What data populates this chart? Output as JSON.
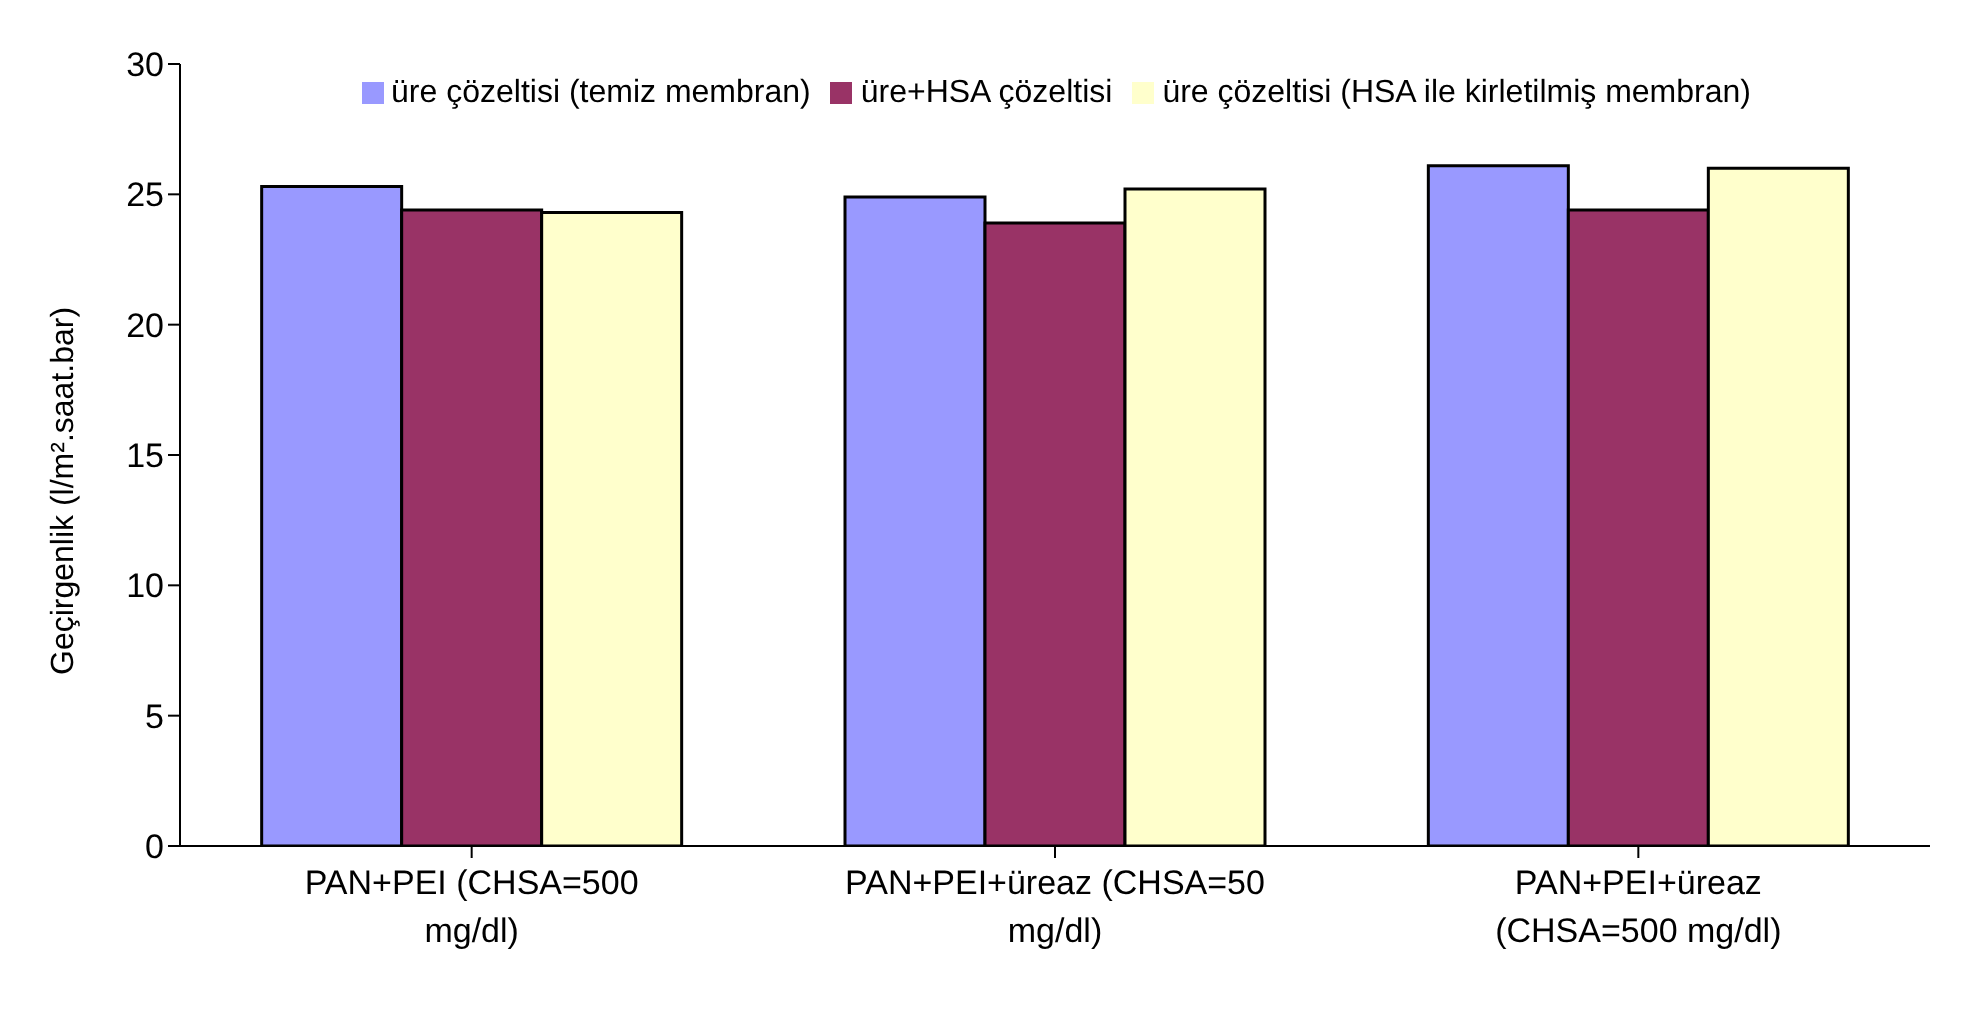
{
  "chart_data": {
    "type": "bar",
    "ylabel": "Geçirgenlik (l/m².saat.bar)",
    "categories": [
      "PAN+PEI (CHSA=500 mg/dl)",
      "PAN+PEI+üreaz (CHSA=50 mg/dl)",
      "PAN+PEI+üreaz (CHSA=500 mg/dl)"
    ],
    "series": [
      {
        "name": "üre çözeltisi (temiz membran)",
        "color": "#9999ff",
        "values": [
          25.3,
          24.9,
          26.1
        ]
      },
      {
        "name": "üre+HSA çözeltisi",
        "color": "#993366",
        "values": [
          24.4,
          23.9,
          24.4
        ]
      },
      {
        "name": "üre çözeltisi (HSA ile kirletilmiş membran)",
        "color": "#ffffcc",
        "values": [
          24.3,
          25.2,
          26.0
        ]
      }
    ],
    "ylim": [
      0,
      30
    ],
    "yticks": [
      0,
      5,
      10,
      15,
      20,
      25,
      30
    ],
    "grid": false,
    "legend": "top"
  }
}
